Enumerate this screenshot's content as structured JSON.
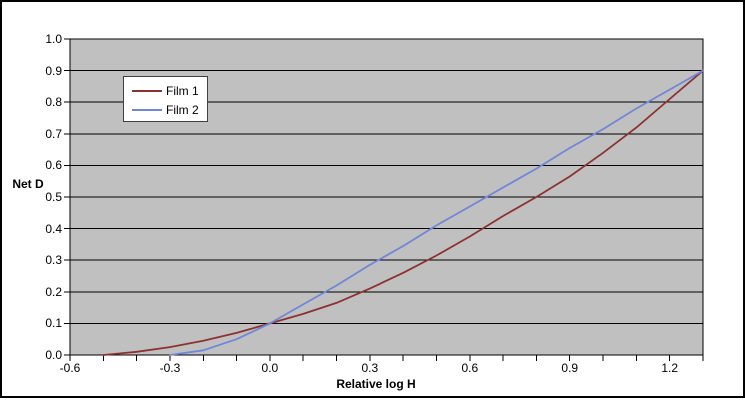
{
  "chart_data": {
    "type": "line",
    "title": "",
    "xlabel": "Relative log H",
    "ylabel": "Net D",
    "xlim": [
      -0.6,
      1.3
    ],
    "ylim": [
      0.0,
      1.0
    ],
    "grid": "horizontal",
    "plot_bg_color": "#C0C0C0",
    "gridline_color": "#000000",
    "legend_position": "upper-left-inside",
    "x_minor_tick_step": 0.1,
    "x_ticks": [
      -0.6,
      -0.5,
      -0.4,
      -0.3,
      -0.2,
      -0.1,
      0.0,
      0.1,
      0.2,
      0.3,
      0.4,
      0.5,
      0.6,
      0.7,
      0.8,
      0.9,
      1.0,
      1.1,
      1.2,
      1.3
    ],
    "x_tick_labels": [
      {
        "value": -0.6,
        "label": "-0.6"
      },
      {
        "value": -0.3,
        "label": "-0.3"
      },
      {
        "value": 0.0,
        "label": "0.0"
      },
      {
        "value": 0.3,
        "label": "0.3"
      },
      {
        "value": 0.6,
        "label": "0.6"
      },
      {
        "value": 0.9,
        "label": "0.9"
      },
      {
        "value": 1.2,
        "label": "1.2"
      }
    ],
    "y_ticks": [
      0.0,
      0.1,
      0.2,
      0.3,
      0.4,
      0.5,
      0.6,
      0.7,
      0.8,
      0.9,
      1.0
    ],
    "y_tick_labels": [
      {
        "value": 0.0,
        "label": "0.0"
      },
      {
        "value": 0.1,
        "label": "0.1"
      },
      {
        "value": 0.2,
        "label": "0.2"
      },
      {
        "value": 0.3,
        "label": "0.3"
      },
      {
        "value": 0.4,
        "label": "0.4"
      },
      {
        "value": 0.5,
        "label": "0.5"
      },
      {
        "value": 0.6,
        "label": "0.6"
      },
      {
        "value": 0.7,
        "label": "0.7"
      },
      {
        "value": 0.8,
        "label": "0.8"
      },
      {
        "value": 0.9,
        "label": "0.9"
      },
      {
        "value": 1.0,
        "label": "1.0"
      }
    ],
    "series": [
      {
        "name": "Film 1",
        "color": "#8C3230",
        "points": [
          [
            -0.5,
            0.0
          ],
          [
            -0.4,
            0.01
          ],
          [
            -0.3,
            0.025
          ],
          [
            -0.2,
            0.045
          ],
          [
            -0.1,
            0.07
          ],
          [
            0.0,
            0.1
          ],
          [
            0.1,
            0.13
          ],
          [
            0.2,
            0.165
          ],
          [
            0.3,
            0.21
          ],
          [
            0.4,
            0.26
          ],
          [
            0.5,
            0.315
          ],
          [
            0.6,
            0.375
          ],
          [
            0.7,
            0.44
          ],
          [
            0.8,
            0.5
          ],
          [
            0.9,
            0.565
          ],
          [
            1.0,
            0.64
          ],
          [
            1.1,
            0.72
          ],
          [
            1.2,
            0.81
          ],
          [
            1.3,
            0.9
          ]
        ]
      },
      {
        "name": "Film 2",
        "color": "#7086D8",
        "points": [
          [
            -0.3,
            0.0
          ],
          [
            -0.2,
            0.015
          ],
          [
            -0.1,
            0.05
          ],
          [
            0.0,
            0.1
          ],
          [
            0.1,
            0.16
          ],
          [
            0.2,
            0.22
          ],
          [
            0.3,
            0.285
          ],
          [
            0.4,
            0.345
          ],
          [
            0.5,
            0.41
          ],
          [
            0.6,
            0.47
          ],
          [
            0.7,
            0.53
          ],
          [
            0.8,
            0.59
          ],
          [
            0.9,
            0.655
          ],
          [
            1.0,
            0.715
          ],
          [
            1.1,
            0.78
          ],
          [
            1.2,
            0.84
          ],
          [
            1.3,
            0.9
          ]
        ]
      }
    ]
  }
}
